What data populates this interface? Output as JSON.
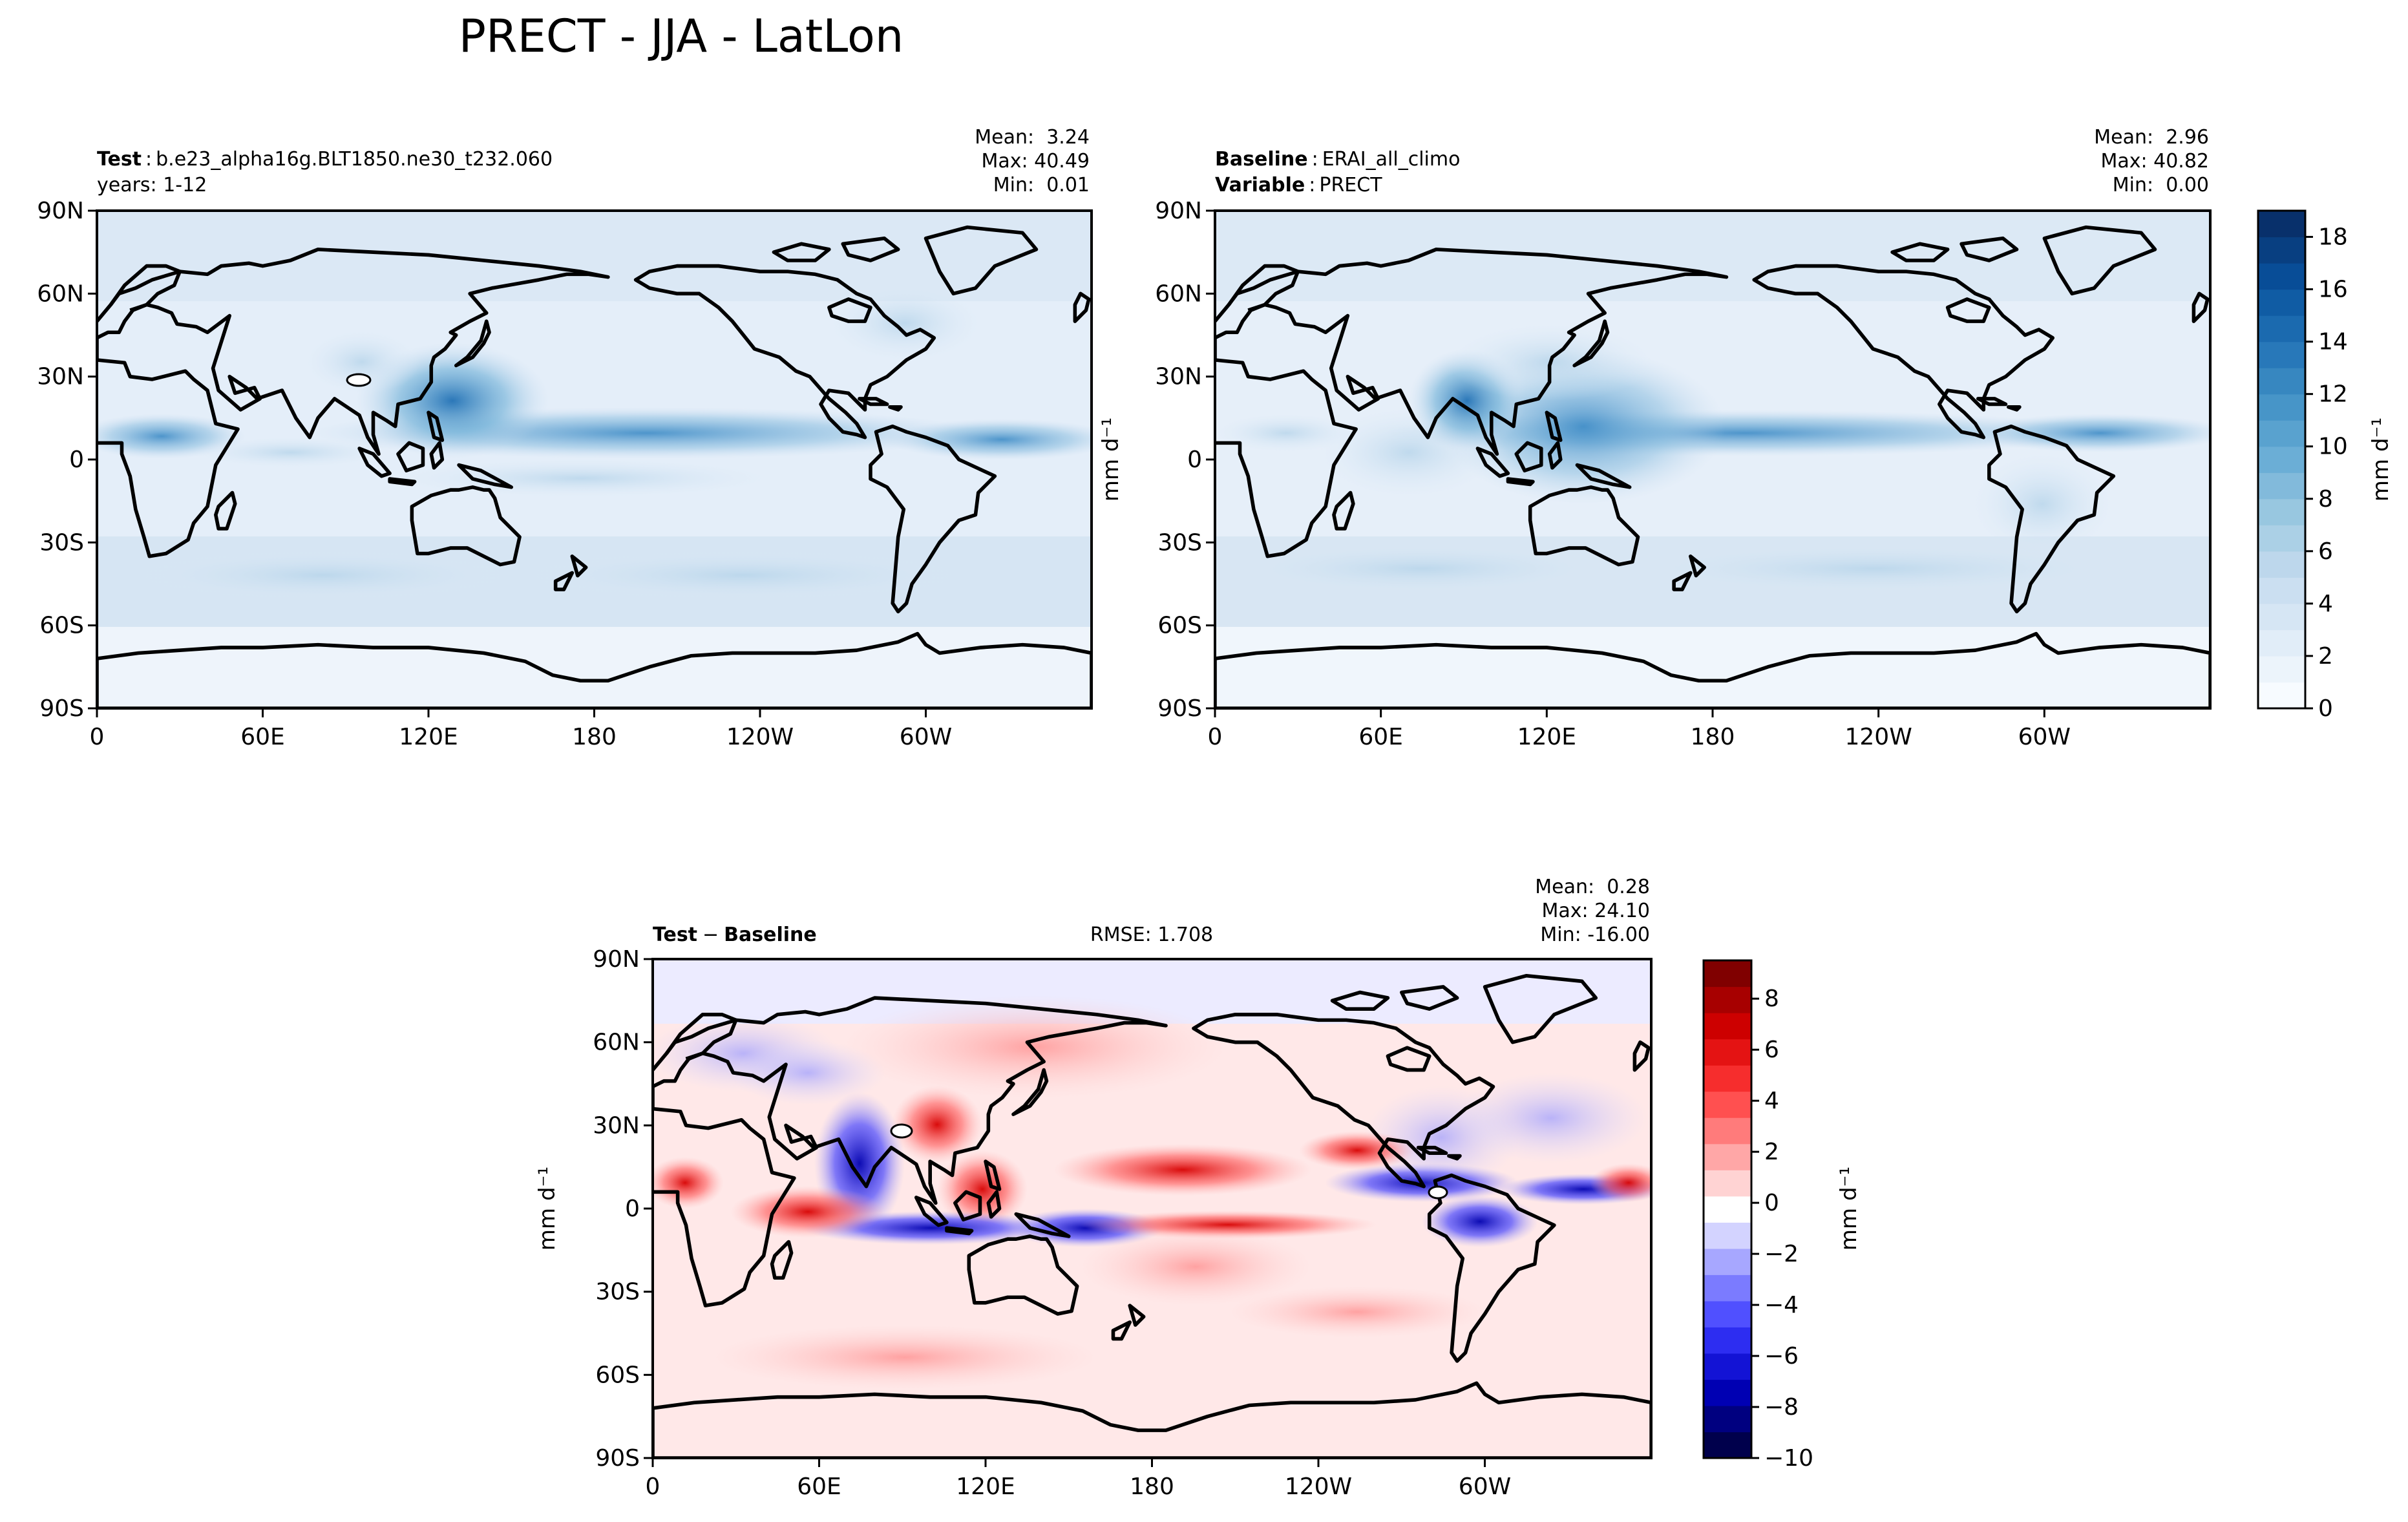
{
  "figure": {
    "title": "PRECT - JJA - LatLon"
  },
  "lat_ticks": [
    "90N",
    "60N",
    "30N",
    "0",
    "30S",
    "60S",
    "90S"
  ],
  "lon_ticks": [
    "0",
    "60E",
    "120E",
    "180",
    "120W",
    "60W"
  ],
  "panels": {
    "test": {
      "header_label": "Test",
      "header_value": "b.e23_alpha16g.BLT1850.ne30_t232.060",
      "header_line2": "years: 1-12",
      "stats": [
        "Mean:  3.24",
        "Max: 40.49",
        "Min:  0.01"
      ]
    },
    "baseline": {
      "header_label": "Baseline",
      "header_value": "ERAI_all_climo",
      "header2_label": "Variable",
      "header2_value": "PRECT",
      "stats": [
        "Mean:  2.96",
        "Max: 40.82",
        "Min:  0.00"
      ],
      "side_unit": "mm d⁻¹"
    },
    "diff": {
      "header_label": "Test",
      "header_op": "−",
      "header_label2": "Baseline",
      "rmse": "RMSE: 1.708",
      "stats": [
        "Mean:  0.28",
        "Max: 24.10",
        "Min: -16.00"
      ],
      "side_unit": "mm d⁻¹"
    }
  },
  "colorbars": {
    "precip": {
      "ticks": [
        "0",
        "2",
        "4",
        "6",
        "8",
        "10",
        "12",
        "14",
        "16",
        "18"
      ],
      "min": 0,
      "max": 19,
      "label": "mm d⁻¹",
      "colors": [
        "#f7fbff",
        "#deebf7",
        "#c6dbef",
        "#9ecae1",
        "#6baed6",
        "#4292c6",
        "#2171b5",
        "#08519c",
        "#08306b"
      ]
    },
    "diff": {
      "ticks": [
        "8",
        "6",
        "4",
        "2",
        "0",
        "−2",
        "−4",
        "−6",
        "−8",
        "−10"
      ],
      "tick_values": [
        8,
        6,
        4,
        2,
        0,
        -2,
        -4,
        -6,
        -8,
        -10
      ],
      "min": -10,
      "max": 9.5,
      "label": "mm d⁻¹",
      "colors": [
        "#00004c",
        "#0000c0",
        "#3a3aff",
        "#9c9cff",
        "#ffffff",
        "#ff9c9c",
        "#ff3a3a",
        "#d70000",
        "#800000"
      ]
    }
  }
}
